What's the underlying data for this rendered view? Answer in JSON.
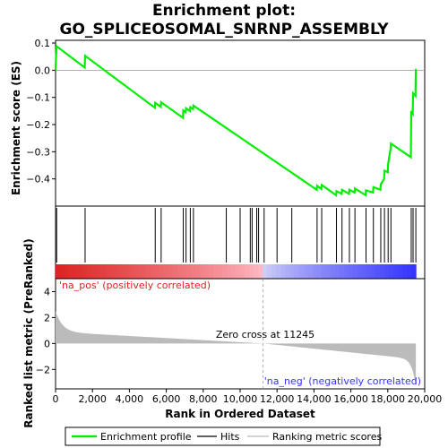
{
  "chart_data": {
    "type": "line",
    "title_line1": "Enrichment plot:",
    "title_line2": "GO_SPLICEOSOMAL_SNRNP_ASSEMBLY",
    "top_panel": {
      "ylabel": "Enrichment score (ES)",
      "ylim": [
        -0.5,
        0.11
      ],
      "yticks": [
        0.1,
        0.0,
        -0.1,
        -0.2,
        -0.3,
        -0.4
      ],
      "ytick_labels": [
        "0.1",
        "0.0",
        "−0.1",
        "−0.2",
        "−0.3",
        "−0.4"
      ],
      "series": [
        {
          "name": "Enrichment profile",
          "color": "#00ee00",
          "x": [
            0,
            50,
            60,
            1580,
            1600,
            5380,
            5400,
            5700,
            5720,
            6900,
            6920,
            7050,
            7070,
            7280,
            7300,
            7450,
            7470,
            14150,
            14170,
            14400,
            14420,
            15200,
            15220,
            15500,
            15520,
            15900,
            15920,
            16200,
            16220,
            16800,
            16820,
            17200,
            17220,
            17600,
            17620,
            17800,
            17820,
            18000,
            18020,
            18150,
            18170,
            19250,
            19270,
            19350,
            19370,
            19500,
            19520
          ],
          "y": [
            0.0,
            0.085,
            0.088,
            0.01,
            0.053,
            -0.138,
            -0.12,
            -0.135,
            -0.118,
            -0.175,
            -0.148,
            -0.155,
            -0.14,
            -0.15,
            -0.136,
            -0.143,
            -0.13,
            -0.44,
            -0.425,
            -0.437,
            -0.422,
            -0.46,
            -0.445,
            -0.455,
            -0.44,
            -0.455,
            -0.44,
            -0.45,
            -0.435,
            -0.46,
            -0.442,
            -0.45,
            -0.43,
            -0.44,
            -0.42,
            -0.4,
            -0.37,
            -0.375,
            -0.345,
            -0.29,
            -0.27,
            -0.32,
            -0.15,
            -0.16,
            -0.085,
            -0.095,
            0.005
          ]
        }
      ]
    },
    "hits_panel": {
      "hit_positions": [
        60,
        1600,
        5400,
        5720,
        6920,
        7070,
        7300,
        7470,
        9250,
        10000,
        10550,
        10650,
        10900,
        11000,
        11300,
        12000,
        12800,
        14170,
        14420,
        15220,
        15520,
        15920,
        16220,
        16820,
        17220,
        17620,
        17820,
        18020,
        18170,
        19270,
        19370,
        19520
      ]
    },
    "rank_panel": {
      "ylabel": "Ranked list metric (PreRanked)",
      "xlabel": "Rank in Ordered Dataset",
      "ylim": [
        -3.5,
        5
      ],
      "yticks": [
        4,
        2,
        0,
        -2
      ],
      "ytick_labels": [
        "4",
        "2",
        "0",
        "−2"
      ],
      "xlim": [
        0,
        20000
      ],
      "xticks": [
        0,
        2000,
        4000,
        6000,
        8000,
        10000,
        12000,
        14000,
        16000,
        18000,
        20000
      ],
      "xtick_labels": [
        "0",
        "2,000",
        "4,000",
        "6,000",
        "8,000",
        "10,000",
        "12,000",
        "14,000",
        "16,000",
        "18,000",
        "20,000"
      ],
      "n_genes": 19520,
      "zero_cross": 11245,
      "zero_cross_label": "Zero cross at 11245",
      "pos_label": "'na_pos' (positively correlated)",
      "neg_label": "'na_neg' (negatively correlated)",
      "pos_color": "#dd2222",
      "neg_color": "#3333ff",
      "fill_color": "#bbbbbb"
    },
    "legend": {
      "placement": "bottom",
      "items": [
        {
          "label": "Enrichment profile",
          "color": "#00ee00",
          "kind": "thick-line"
        },
        {
          "label": "Hits",
          "color": "#000000",
          "kind": "line"
        },
        {
          "label": "Ranking metric scores",
          "color": "#bbbbbb",
          "kind": "line"
        }
      ]
    }
  }
}
